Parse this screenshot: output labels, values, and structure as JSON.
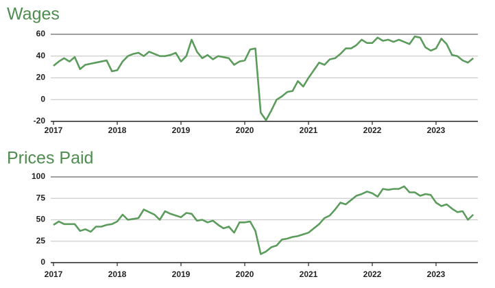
{
  "chart_data": [
    {
      "type": "line",
      "title": "Wages",
      "color": "#5b9b5b",
      "categories": [
        "2017",
        null,
        null,
        null,
        null,
        null,
        null,
        null,
        null,
        null,
        null,
        null,
        "2018",
        null,
        null,
        null,
        null,
        null,
        null,
        null,
        null,
        null,
        null,
        null,
        "2019",
        null,
        null,
        null,
        null,
        null,
        null,
        null,
        null,
        null,
        null,
        null,
        "2020",
        null,
        null,
        null,
        null,
        null,
        null,
        null,
        null,
        null,
        null,
        null,
        "2021",
        null,
        null,
        null,
        null,
        null,
        null,
        null,
        null,
        null,
        null,
        null,
        "2022",
        null,
        null,
        null,
        null,
        null,
        null,
        null,
        null,
        null,
        null,
        null,
        "2023",
        null,
        null,
        null,
        null,
        null,
        null,
        null
      ],
      "values": [
        31,
        35,
        38,
        35,
        39,
        28,
        32,
        33,
        34,
        35,
        36,
        26,
        27,
        35,
        40,
        42,
        43,
        40,
        44,
        42,
        40,
        40,
        41,
        43,
        35,
        40,
        55,
        44,
        38,
        41,
        37,
        40,
        39,
        38,
        32,
        35,
        36,
        46,
        47,
        -12,
        -19,
        -10,
        0,
        3,
        7,
        8,
        17,
        12,
        20,
        27,
        34,
        32,
        37,
        38,
        42,
        47,
        47,
        50,
        55,
        52,
        52,
        57,
        54,
        55,
        53,
        55,
        53,
        51,
        58,
        57,
        48,
        45,
        47,
        56,
        51,
        41,
        40,
        36,
        34,
        38
      ],
      "ylim": [
        -20,
        60
      ],
      "yticks": [
        -20,
        0,
        20,
        40,
        60
      ],
      "grid": true
    },
    {
      "type": "line",
      "title": "Prices Paid",
      "color": "#5b9b5b",
      "categories": [
        "2017",
        null,
        null,
        null,
        null,
        null,
        null,
        null,
        null,
        null,
        null,
        null,
        "2018",
        null,
        null,
        null,
        null,
        null,
        null,
        null,
        null,
        null,
        null,
        null,
        "2019",
        null,
        null,
        null,
        null,
        null,
        null,
        null,
        null,
        null,
        null,
        null,
        "2020",
        null,
        null,
        null,
        null,
        null,
        null,
        null,
        null,
        null,
        null,
        null,
        "2021",
        null,
        null,
        null,
        null,
        null,
        null,
        null,
        null,
        null,
        null,
        null,
        "2022",
        null,
        null,
        null,
        null,
        null,
        null,
        null,
        null,
        null,
        null,
        null,
        "2023",
        null,
        null,
        null,
        null,
        null,
        null,
        null
      ],
      "values": [
        44,
        48,
        45,
        45,
        45,
        37,
        39,
        36,
        42,
        42,
        44,
        45,
        48,
        56,
        50,
        51,
        52,
        62,
        59,
        56,
        50,
        60,
        57,
        55,
        53,
        58,
        57,
        49,
        50,
        47,
        49,
        44,
        40,
        42,
        35,
        47,
        47,
        48,
        37,
        10,
        13,
        18,
        20,
        27,
        28,
        30,
        31,
        33,
        35,
        40,
        45,
        52,
        55,
        62,
        70,
        68,
        73,
        78,
        80,
        83,
        81,
        77,
        86,
        85,
        86,
        86,
        89,
        82,
        82,
        78,
        80,
        79,
        70,
        66,
        68,
        63,
        59,
        60,
        50,
        56
      ],
      "ylim": [
        0,
        100
      ],
      "yticks": [
        0,
        25,
        50,
        75,
        100
      ],
      "grid": true
    }
  ]
}
